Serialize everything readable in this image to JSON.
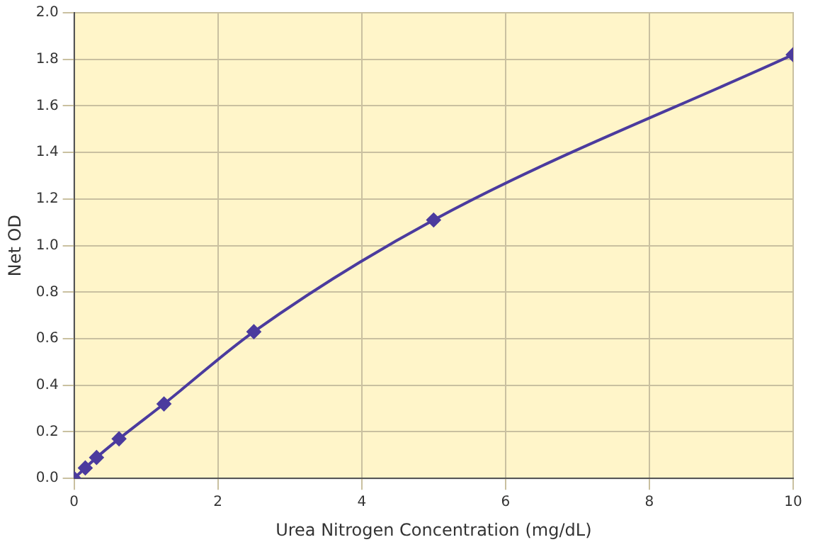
{
  "chart_data": {
    "type": "line",
    "xlabel": "Urea Nitrogen Concentration (mg/dL)",
    "ylabel": "Net OD",
    "x": [
      0,
      0.156,
      0.3125,
      0.625,
      1.25,
      2.5,
      5,
      10
    ],
    "series": [
      {
        "color": "#4b3b9e",
        "values": [
          0,
          0.045,
          0.09,
          0.17,
          0.32,
          0.63,
          1.11,
          1.82
        ]
      }
    ],
    "xlim": [
      0,
      10
    ],
    "xticks": [
      0,
      2,
      4,
      6,
      8,
      10
    ],
    "ylim": [
      0,
      2
    ],
    "yticks": [
      {
        "value": 0,
        "label": "0.0"
      },
      {
        "value": 0.2,
        "label": "0.2"
      },
      {
        "value": 0.4,
        "label": "0.4"
      },
      {
        "value": 0.6,
        "label": "0.6"
      },
      {
        "value": 0.8,
        "label": "0.8"
      },
      {
        "value": 1,
        "label": "1.0"
      },
      {
        "value": 1.2,
        "label": "1.2"
      },
      {
        "value": 1.4,
        "label": "1.4"
      },
      {
        "value": 1.6,
        "label": "1.6"
      },
      {
        "value": 1.8,
        "label": "1.8"
      },
      {
        "value": 2,
        "label": "2.0"
      }
    ],
    "grid": true,
    "legend": false,
    "marker": "diamond",
    "line_style": "solid"
  }
}
